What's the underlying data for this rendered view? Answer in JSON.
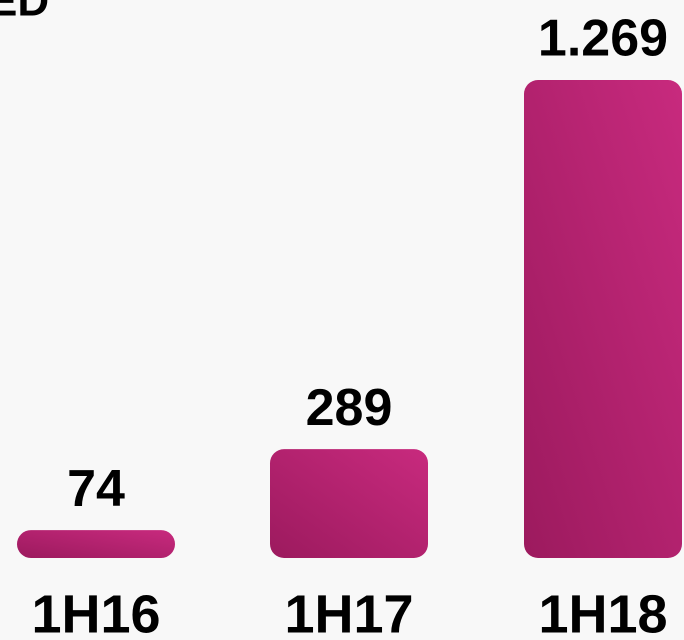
{
  "chart_data": {
    "type": "bar",
    "title": "ED",
    "categories": [
      "1H16",
      "1H17",
      "1H18"
    ],
    "values": [
      74,
      289,
      1269
    ],
    "value_labels": [
      "74",
      "289",
      "1.269"
    ],
    "color": [
      "#c82a7e",
      "#9c1a5e"
    ]
  }
}
